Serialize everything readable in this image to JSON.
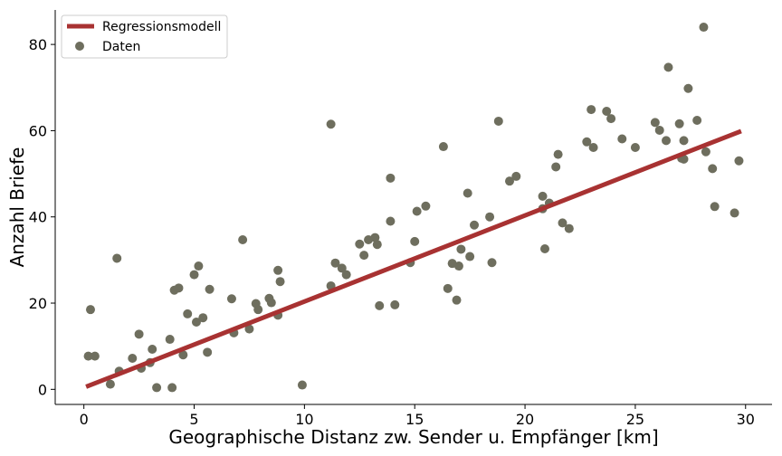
{
  "chart_data": {
    "type": "scatter",
    "xlabel": "Geographische Distanz zw. Sender u. Empfänger [km]",
    "ylabel": "Anzahl Briefe",
    "xlim": [
      -1.3,
      31.2
    ],
    "ylim": [
      -3.5,
      88
    ],
    "xticks": [
      0,
      5,
      10,
      15,
      20,
      25,
      30
    ],
    "yticks": [
      0,
      20,
      40,
      60,
      80
    ],
    "grid": false,
    "legend": {
      "placement": "top-left",
      "entries": [
        "Regressionsmodell",
        "Daten"
      ]
    },
    "series": [
      {
        "name": "Regressionsmodell",
        "kind": "line",
        "color": "#a83232",
        "x": [
          0.1,
          29.8
        ],
        "y": [
          0.6,
          59.9
        ]
      },
      {
        "name": "Daten",
        "kind": "scatter",
        "color": "#6e6e5e",
        "x": [
          0.2,
          0.3,
          0.5,
          1.2,
          1.5,
          1.6,
          2.2,
          2.5,
          2.6,
          3.0,
          3.1,
          3.3,
          3.9,
          4.0,
          4.1,
          4.3,
          4.5,
          4.7,
          5.0,
          5.1,
          5.2,
          5.4,
          5.6,
          5.7,
          6.7,
          6.8,
          7.2,
          7.5,
          7.8,
          7.9,
          8.4,
          8.5,
          8.8,
          8.8,
          8.9,
          9.9,
          11.2,
          11.2,
          11.4,
          11.7,
          11.9,
          12.5,
          12.7,
          12.9,
          13.2,
          13.3,
          13.4,
          13.9,
          13.9,
          14.1,
          14.8,
          15.0,
          15.1,
          15.5,
          16.3,
          16.5,
          16.7,
          16.9,
          17.0,
          17.1,
          17.4,
          17.5,
          17.7,
          18.4,
          18.5,
          18.8,
          19.3,
          19.6,
          20.8,
          20.8,
          20.9,
          21.1,
          21.4,
          21.5,
          21.7,
          22.0,
          22.8,
          23.0,
          23.1,
          23.7,
          23.9,
          24.4,
          25.0,
          25.9,
          26.1,
          26.4,
          26.5,
          27.0,
          27.1,
          27.2,
          27.2,
          27.4,
          27.8,
          28.1,
          28.2,
          28.5,
          28.6,
          29.5,
          29.7
        ],
        "y": [
          7.7,
          18.5,
          7.7,
          1.2,
          30.4,
          4.2,
          7.2,
          12.8,
          4.9,
          6.2,
          9.3,
          0.4,
          11.6,
          0.4,
          23.0,
          23.5,
          8.0,
          17.5,
          26.6,
          15.6,
          28.6,
          16.6,
          8.6,
          23.2,
          21.0,
          13.1,
          34.7,
          14.0,
          19.9,
          18.5,
          21.1,
          20.1,
          27.6,
          17.2,
          25.0,
          1.0,
          61.5,
          24.0,
          29.3,
          28.1,
          26.6,
          33.7,
          31.1,
          34.7,
          35.2,
          33.6,
          19.4,
          49.0,
          39.0,
          19.6,
          29.4,
          34.3,
          41.3,
          42.5,
          56.3,
          23.4,
          29.2,
          20.7,
          28.6,
          32.5,
          45.5,
          30.8,
          38.1,
          40.0,
          29.4,
          62.2,
          48.3,
          49.4,
          44.8,
          41.9,
          32.6,
          43.2,
          51.6,
          54.5,
          38.6,
          37.3,
          57.4,
          64.9,
          56.1,
          64.5,
          62.8,
          58.1,
          56.1,
          61.9,
          60.1,
          57.7,
          74.7,
          61.6,
          53.6,
          57.7,
          53.4,
          69.8,
          62.4,
          84.0,
          55.1,
          51.2,
          42.4,
          40.9,
          53.0
        ]
      }
    ]
  }
}
